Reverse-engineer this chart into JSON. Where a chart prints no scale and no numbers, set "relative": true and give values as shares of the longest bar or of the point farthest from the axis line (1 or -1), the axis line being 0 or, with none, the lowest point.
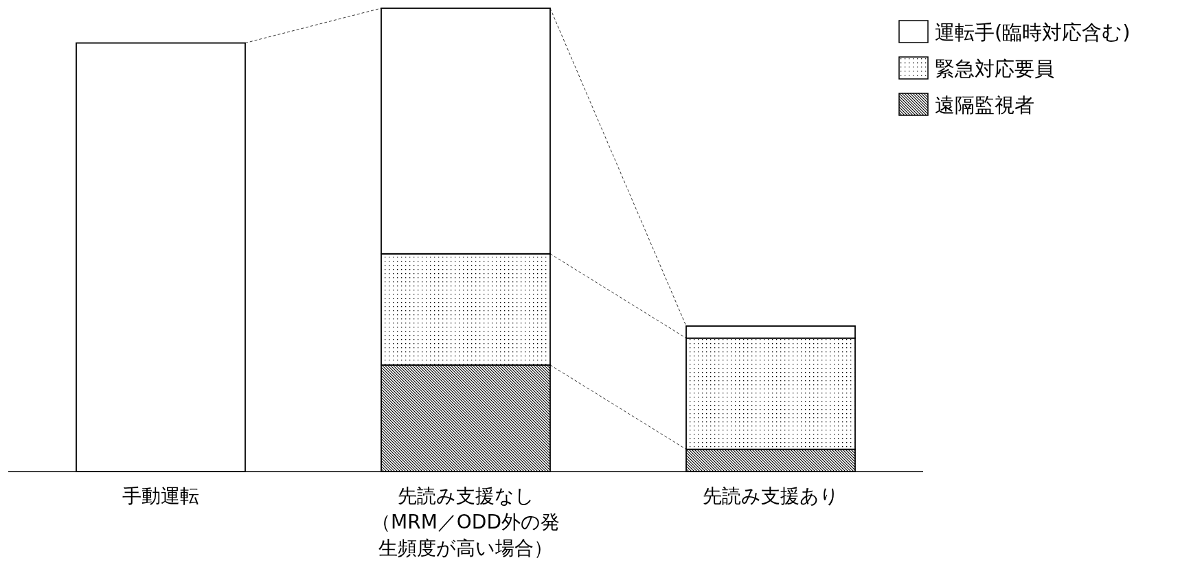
{
  "chart_data": {
    "type": "bar",
    "stacked": true,
    "relative": true,
    "legend": "top right",
    "categories": [
      "手動運転",
      "先読み支援なし（MRM／ODD外の発生頻度が高い場合）",
      "先読み支援あり"
    ],
    "series": [
      {
        "name": "遠隔監視者",
        "color": "#000000",
        "values": [
          0,
          0.23,
          0.048
        ]
      },
      {
        "name": "緊急対応要員",
        "color": "#000000",
        "values": [
          0,
          0.24,
          0.24
        ]
      },
      {
        "name": "運転手(臨時対応含む)",
        "color": "#ffffff",
        "values": [
          0.925,
          0.53,
          0.026
        ]
      }
    ]
  }
}
